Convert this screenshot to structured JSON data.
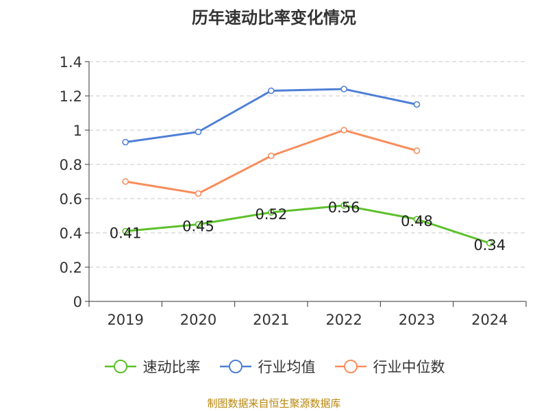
{
  "chart_data": {
    "type": "line",
    "title": "历年速动比率变化情况",
    "categories": [
      "2019",
      "2020",
      "2021",
      "2022",
      "2023",
      "2024"
    ],
    "ylim": [
      0,
      1.4
    ],
    "yticks": [
      "0",
      "0.2",
      "0.4",
      "0.6",
      "0.8",
      "1",
      "1.2",
      "1.4"
    ],
    "grid": true,
    "legend_position": "bottom",
    "series": [
      {
        "name": "速动比率",
        "color": "#5cc02a",
        "values": [
          0.41,
          0.45,
          0.52,
          0.56,
          0.48,
          0.34
        ],
        "labels": [
          "0.41",
          "0.45",
          "0.52",
          "0.56",
          "0.48",
          "0.34"
        ]
      },
      {
        "name": "行业均值",
        "color": "#4e7fd6",
        "values": [
          0.93,
          0.99,
          1.23,
          1.24,
          1.15,
          null
        ]
      },
      {
        "name": "行业中位数",
        "color": "#f88d5c",
        "values": [
          0.7,
          0.63,
          0.85,
          1.0,
          0.88,
          null
        ]
      }
    ]
  },
  "footer": {
    "source": "制图数据来自恒生聚源数据库"
  }
}
